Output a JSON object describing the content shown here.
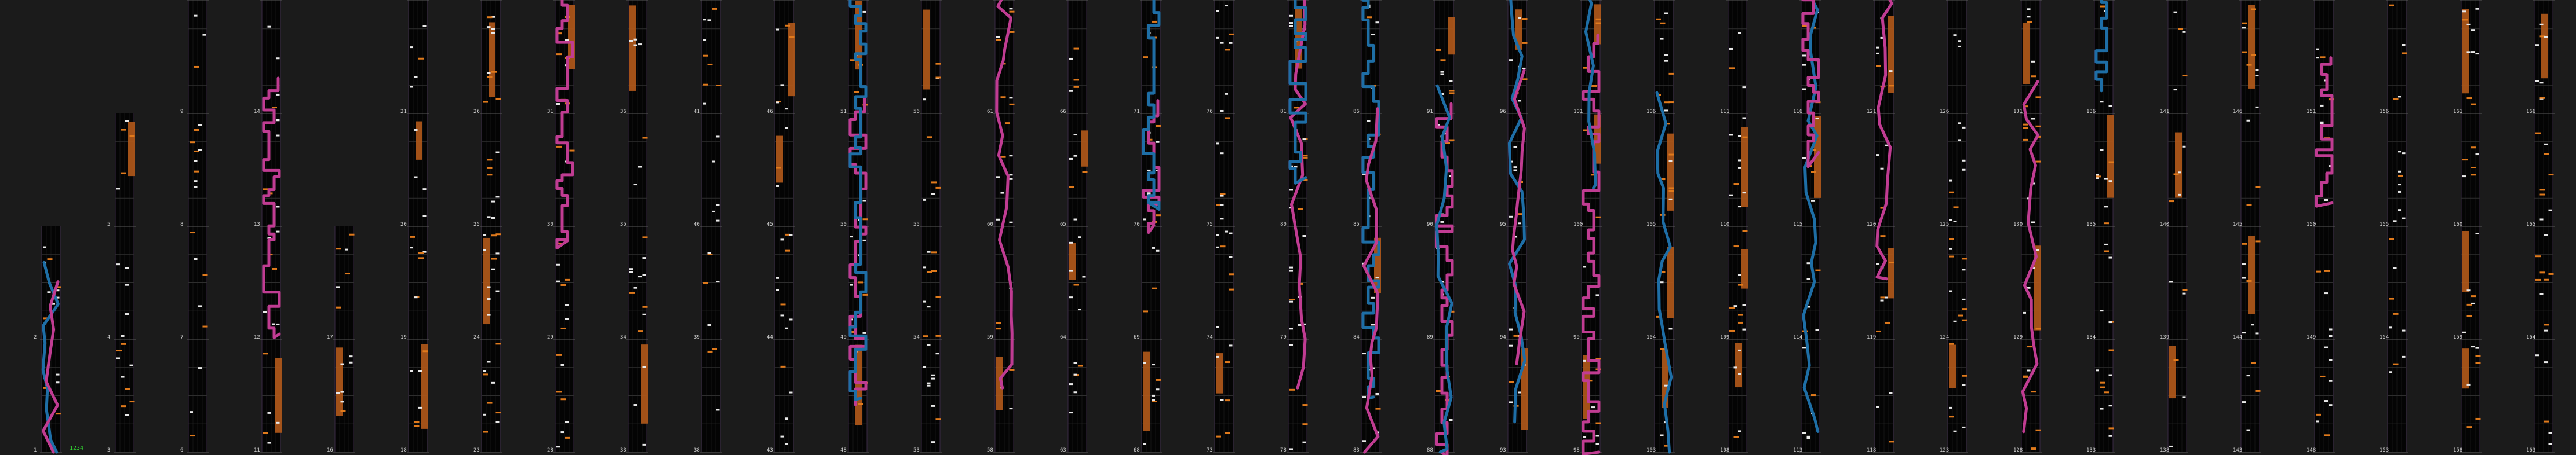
{
  "viewer": {
    "total_notes_label": "1234",
    "colors": {
      "background": "#1b1b1b",
      "lane": "#040404",
      "white_note": "#eaeaea",
      "orange_note": "#e07a1c",
      "hold": "#b0581a",
      "pink_laser": "#c03c92",
      "blue_laser": "#1e6ea6"
    }
  },
  "columns": [
    {
      "measures": [
        "1",
        "2"
      ]
    },
    {
      "measures": [
        "3",
        "4",
        "5"
      ]
    },
    {
      "measures": [
        "6",
        "7",
        "8",
        "9",
        "10"
      ]
    },
    {
      "measures": [
        "11",
        "12",
        "13",
        "14",
        "15"
      ]
    },
    {
      "measures": [
        "16",
        "17"
      ]
    },
    {
      "measures": [
        "18",
        "19",
        "20",
        "21",
        "22"
      ]
    },
    {
      "measures": [
        "23",
        "24",
        "25",
        "26",
        "27"
      ]
    },
    {
      "measures": [
        "28",
        "29",
        "30",
        "31",
        "32"
      ]
    },
    {
      "measures": [
        "33",
        "34",
        "35",
        "36",
        "37"
      ]
    },
    {
      "measures": [
        "38",
        "39",
        "40",
        "41",
        "42"
      ]
    },
    {
      "measures": [
        "43",
        "44",
        "45",
        "46",
        "47"
      ]
    },
    {
      "measures": [
        "48",
        "49",
        "50",
        "51",
        "52"
      ]
    },
    {
      "measures": [
        "53",
        "54",
        "55",
        "56",
        "57"
      ]
    },
    {
      "measures": [
        "58",
        "59",
        "60",
        "61",
        "62"
      ]
    },
    {
      "measures": [
        "63",
        "64",
        "65",
        "66",
        "67"
      ]
    },
    {
      "measures": [
        "68",
        "69",
        "70",
        "71",
        "72"
      ]
    },
    {
      "measures": [
        "73",
        "74",
        "75",
        "76",
        "77"
      ]
    },
    {
      "measures": [
        "78",
        "79",
        "80",
        "81",
        "82"
      ]
    },
    {
      "measures": [
        "83",
        "84",
        "85",
        "86",
        "87"
      ]
    },
    {
      "measures": [
        "88",
        "89",
        "90",
        "91",
        "92"
      ]
    },
    {
      "measures": [
        "93",
        "94",
        "95",
        "96",
        "97"
      ]
    },
    {
      "measures": [
        "98",
        "99",
        "100",
        "101",
        "102"
      ]
    },
    {
      "measures": [
        "103",
        "104",
        "105",
        "106",
        "107"
      ]
    },
    {
      "measures": [
        "108",
        "109",
        "110",
        "111",
        "112"
      ]
    },
    {
      "measures": [
        "113",
        "114",
        "115",
        "116",
        "117"
      ]
    },
    {
      "measures": [
        "118",
        "119",
        "120",
        "121",
        "122"
      ]
    },
    {
      "measures": [
        "123",
        "124",
        "125",
        "126",
        "127"
      ]
    },
    {
      "measures": [
        "128",
        "129",
        "130",
        "131",
        "132"
      ]
    },
    {
      "measures": [
        "133",
        "134",
        "135",
        "136",
        "137"
      ]
    },
    {
      "measures": [
        "138",
        "139",
        "140",
        "141",
        "142"
      ]
    },
    {
      "measures": [
        "143",
        "144",
        "145",
        "146",
        "147"
      ]
    },
    {
      "measures": [
        "148",
        "149",
        "150",
        "151",
        "152"
      ]
    },
    {
      "measures": [
        "153",
        "154",
        "155",
        "156",
        "157"
      ]
    },
    {
      "measures": [
        "158",
        "159",
        "160",
        "161",
        "162"
      ]
    },
    {
      "measures": [
        "163",
        "164",
        "165",
        "166",
        "167"
      ]
    }
  ]
}
